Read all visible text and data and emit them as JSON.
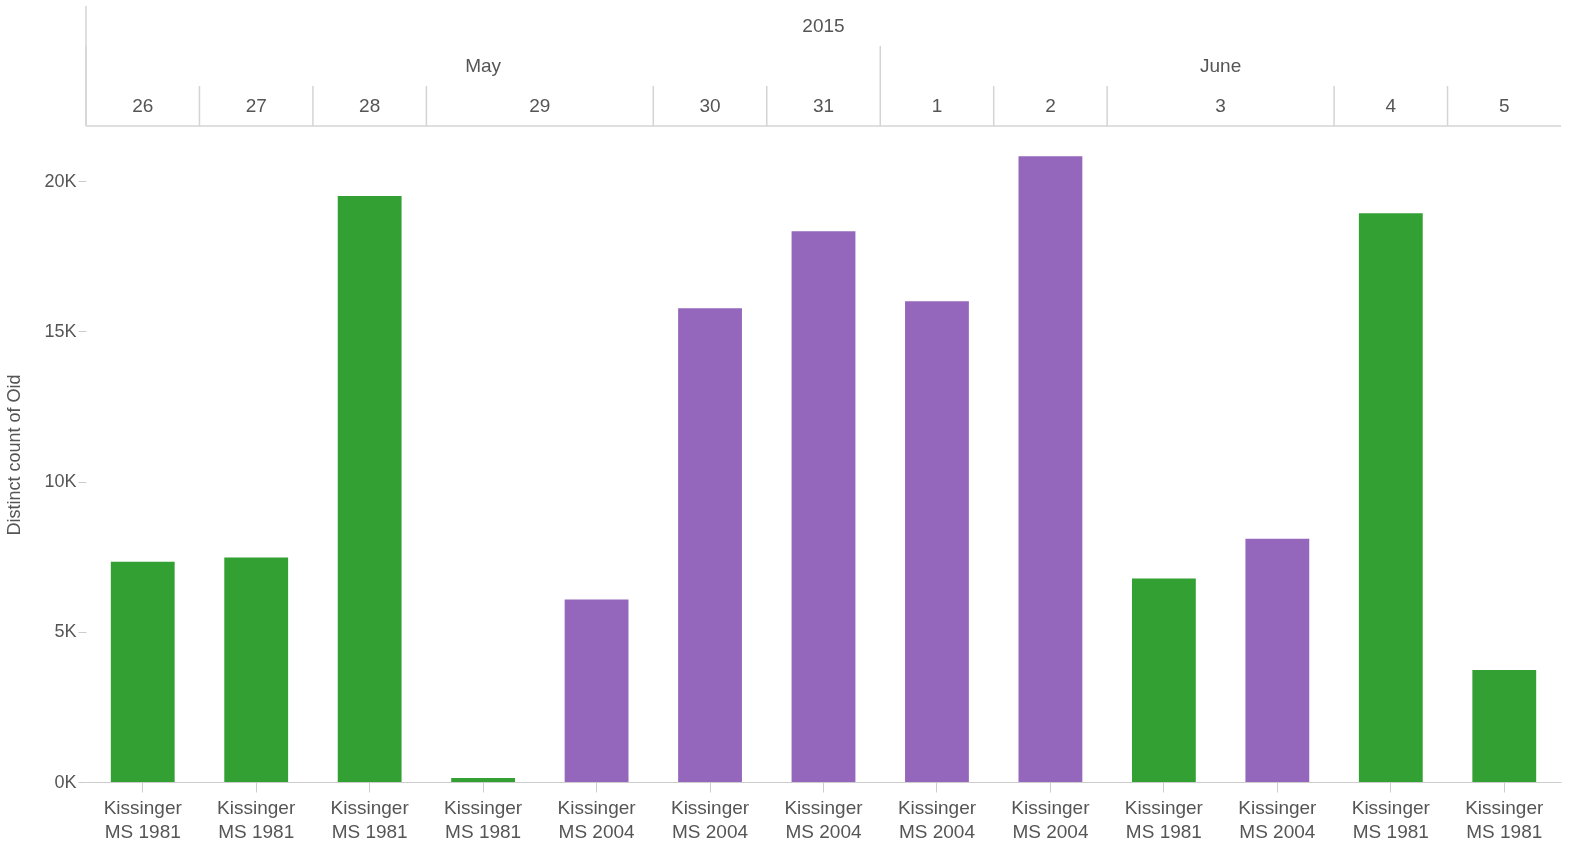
{
  "chart_data": {
    "type": "bar",
    "ylabel": "Distinct count of Oid",
    "categories": [
      "Kissinger MS 1981",
      "Kissinger MS 1981",
      "Kissinger MS 1981",
      "Kissinger MS 1981",
      "Kissinger MS 2004",
      "Kissinger MS 2004",
      "Kissinger MS 2004",
      "Kissinger MS 2004",
      "Kissinger MS 2004",
      "Kissinger MS 1981",
      "Kissinger MS 2004",
      "Kissinger MS 1981",
      "Kissinger MS 1981"
    ],
    "values": [
      7330,
      7470,
      19500,
      130,
      6070,
      15770,
      18330,
      16000,
      20830,
      6770,
      8100,
      18930,
      3730
    ],
    "colors": [
      "#33a033",
      "#33a033",
      "#33a033",
      "#33a033",
      "#9467bd",
      "#9467bd",
      "#9467bd",
      "#9467bd",
      "#9467bd",
      "#33a033",
      "#9467bd",
      "#33a033",
      "#33a033"
    ],
    "ylim": [
      0,
      21800
    ],
    "yticks": [
      {
        "value": 0,
        "label": "0K"
      },
      {
        "value": 5000,
        "label": "5K"
      },
      {
        "value": 10000,
        "label": "10K"
      },
      {
        "value": 15000,
        "label": "15K"
      },
      {
        "value": 20000,
        "label": "20K"
      }
    ],
    "annotations": [
      "2015",
      "May",
      "June",
      "26",
      "27",
      "28",
      "29",
      "30",
      "31",
      "1",
      "2",
      "3",
      "4",
      "5"
    ],
    "grid": false
  }
}
